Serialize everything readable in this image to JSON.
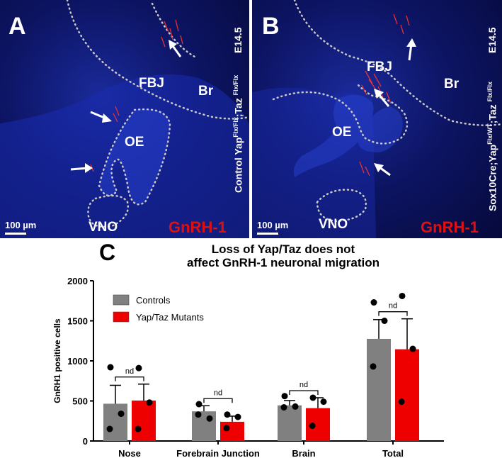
{
  "panels": [
    {
      "letter": "A",
      "caption_main": "Control Yap",
      "caption_sup1": "Flx/Flx",
      "caption_mid": ";Taz ",
      "caption_sup2": "Flx/Flx",
      "stage": "E14.5",
      "labels": {
        "fbj": "FBJ",
        "br": "Br",
        "oe": "OE",
        "vno": "VNO"
      },
      "stain": "GnRH-1",
      "scale": "100 µm"
    },
    {
      "letter": "B",
      "caption_main": "Sox10Cre;Yap",
      "caption_sup1": "Flx/WT",
      "caption_mid": ";Taz ",
      "caption_sup2": "Flx/Flx",
      "stage": "E14.5",
      "labels": {
        "fbj": "FBJ",
        "br": "Br",
        "oe": "OE",
        "vno": "VNO"
      },
      "stain": "GnRH-1",
      "scale": "100 µm"
    }
  ],
  "panel_c": {
    "letter": "C",
    "title_line1": "Loss of Yap/Taz does not",
    "title_line2": "affect GnRH-1 neuronal migration"
  },
  "chart_data": {
    "type": "bar",
    "title": "Loss of Yap/Taz does not affect GnRH-1 neuronal migration",
    "xlabel": "",
    "ylabel": "GnRH1 positive cells",
    "ylim": [
      0,
      2000
    ],
    "yticks": [
      "0",
      "500",
      "1000",
      "1500",
      "2000"
    ],
    "categories": [
      "Nose",
      "Forebrain Junction",
      "Brain",
      "Total"
    ],
    "legend_position": "top-left",
    "significance": [
      "nd",
      "nd",
      "nd",
      "nd"
    ],
    "series": [
      {
        "name": "Controls",
        "color": "#808080",
        "values": [
          465,
          370,
          445,
          1275
        ],
        "error": [
          230,
          70,
          60,
          240
        ],
        "points": [
          [
            920,
            340,
            150
          ],
          [
            460,
            280,
            330
          ],
          [
            560,
            430,
            420
          ],
          [
            1730,
            1500,
            930
          ]
        ]
      },
      {
        "name": "Yap/Taz Mutants",
        "color": "#ee0000",
        "values": [
          505,
          240,
          410,
          1145
        ],
        "error": [
          205,
          70,
          130,
          380
        ],
        "points": [
          [
            910,
            480,
            150
          ],
          [
            330,
            300,
            160
          ],
          [
            540,
            490,
            190
          ],
          [
            1810,
            1150,
            490
          ]
        ]
      }
    ]
  }
}
